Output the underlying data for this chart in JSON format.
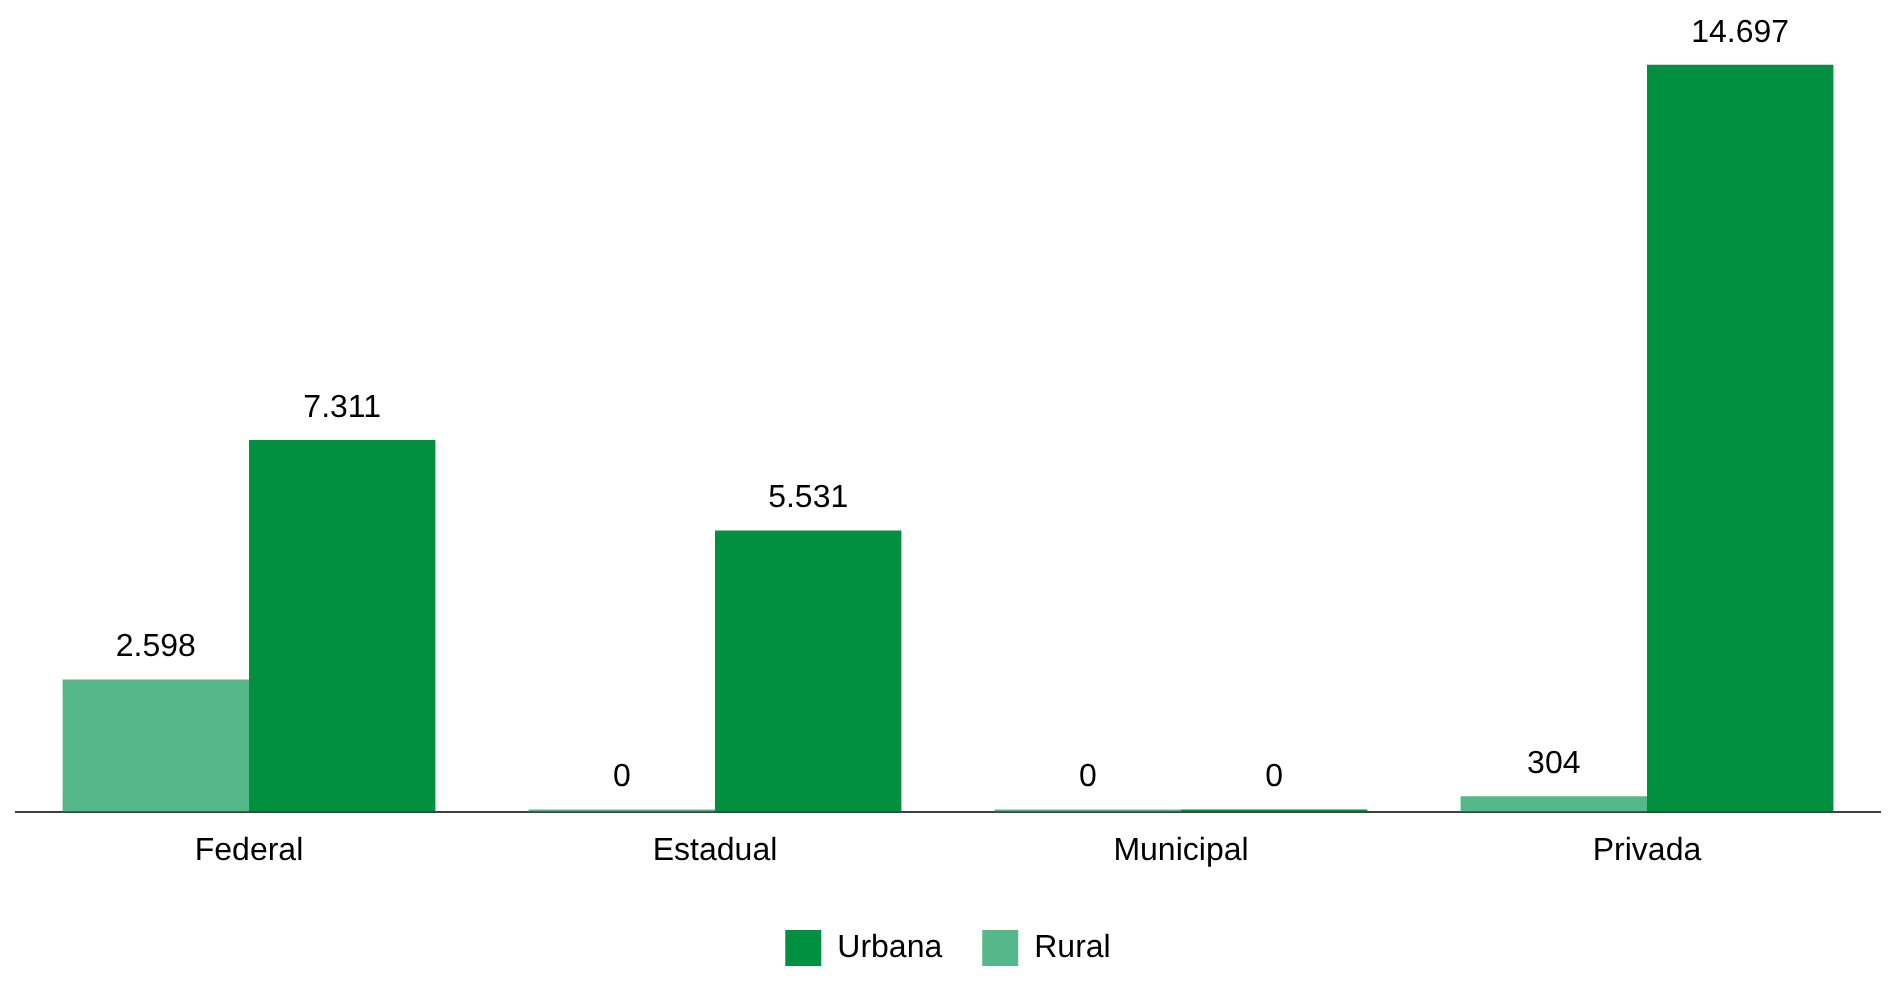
{
  "chart_data": {
    "type": "bar",
    "categories": [
      "Federal",
      "Estadual",
      "Municipal",
      "Privada"
    ],
    "series": [
      {
        "name": "Rural",
        "color": "#55b88a",
        "values": [
          2598,
          0,
          0,
          304
        ],
        "value_labels": [
          "2.598",
          "0",
          "0",
          "304"
        ]
      },
      {
        "name": "Urbana",
        "color": "#009040",
        "values": [
          7311,
          5531,
          0,
          14697
        ],
        "value_labels": [
          "7.311",
          "5.531",
          "0",
          "14.697"
        ]
      }
    ],
    "legend": "bottom",
    "grid": false
  }
}
